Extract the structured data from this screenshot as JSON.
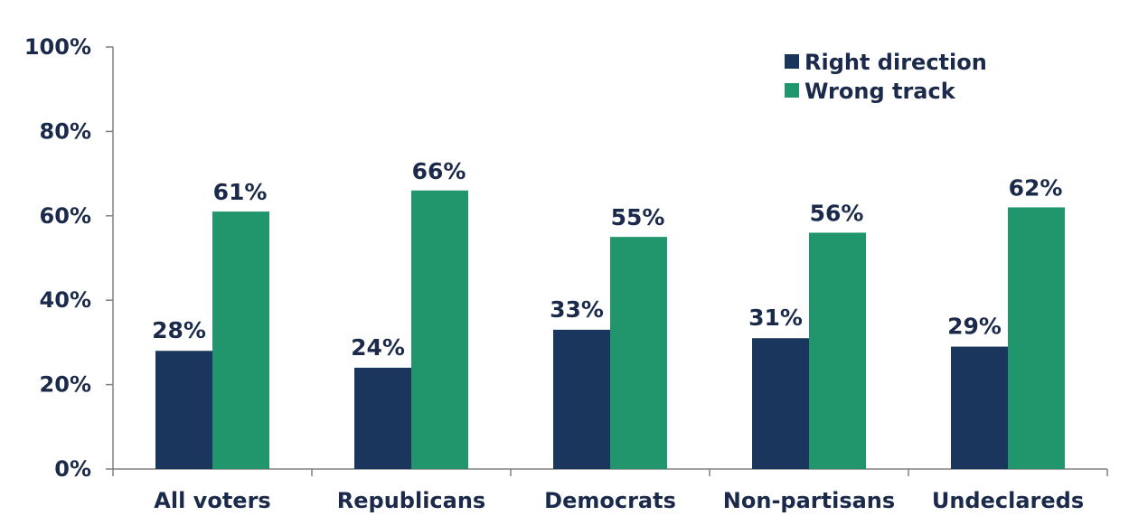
{
  "chart_data": {
    "type": "bar",
    "categories": [
      "All voters",
      "Republicans",
      "Democrats",
      "Non-partisans",
      "Undeclareds"
    ],
    "series": [
      {
        "name": "Right direction",
        "values": [
          28,
          24,
          33,
          31,
          29
        ],
        "labels": [
          "28%",
          "24%",
          "33%",
          "31%",
          "29%"
        ],
        "color": "#1b365d"
      },
      {
        "name": "Wrong track",
        "values": [
          61,
          66,
          55,
          56,
          62
        ],
        "labels": [
          "61%",
          "66%",
          "55%",
          "56%",
          "62%"
        ],
        "color": "#21956b"
      }
    ],
    "ylim": [
      0,
      100
    ],
    "yticks": [
      0,
      20,
      40,
      60,
      80,
      100
    ],
    "ytick_labels": [
      "0%",
      "20%",
      "40%",
      "60%",
      "80%",
      "100%"
    ],
    "grid": false,
    "legend_position": "top-right"
  }
}
